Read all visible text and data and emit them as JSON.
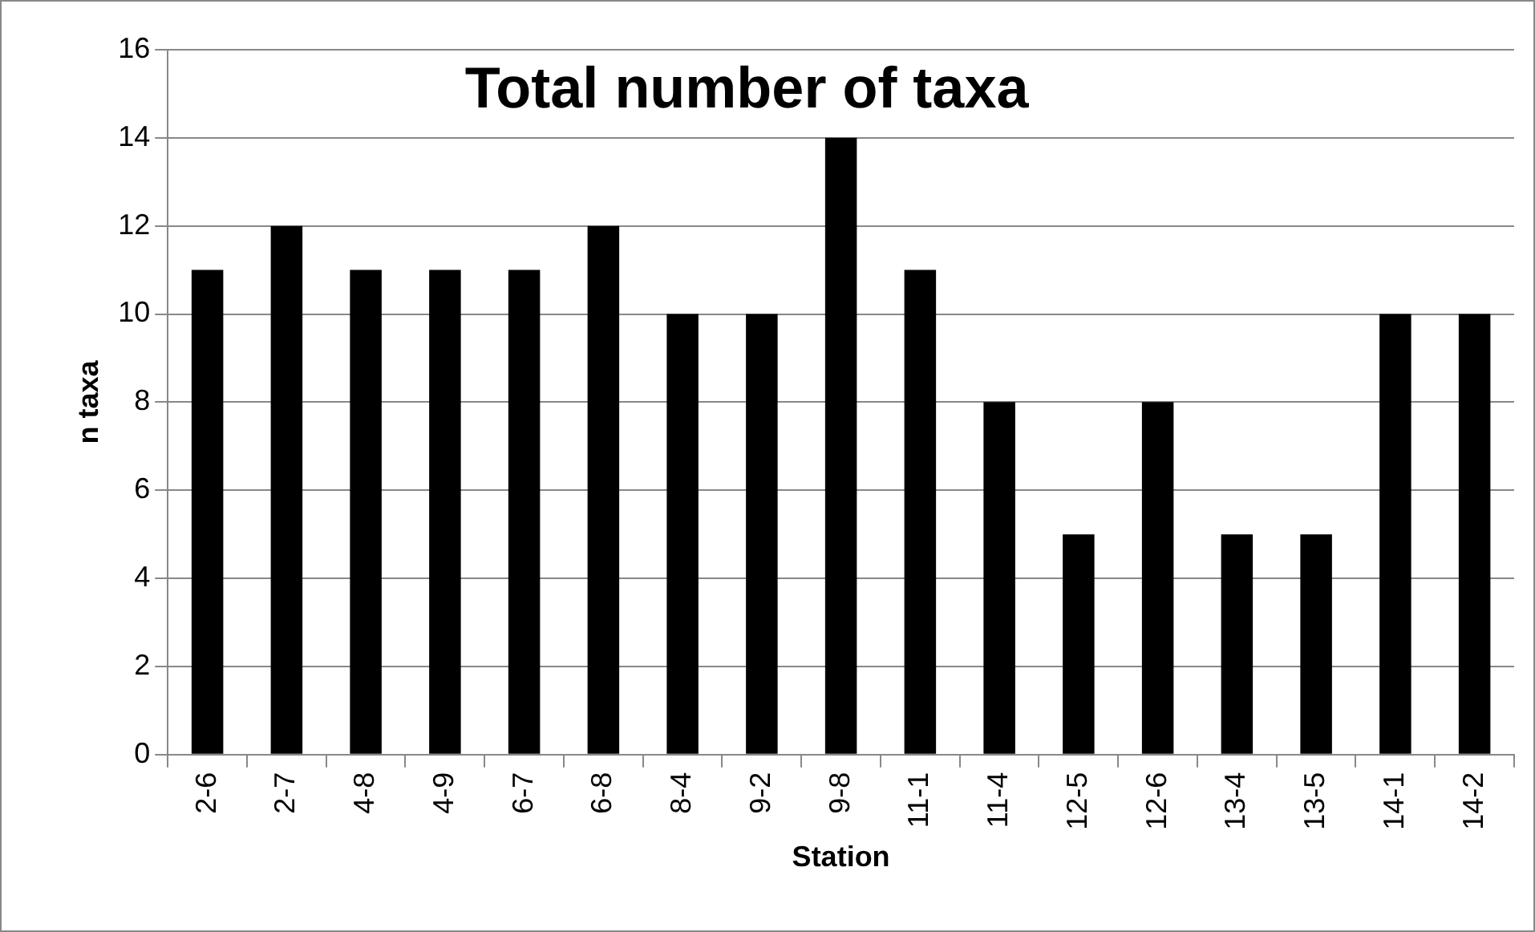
{
  "chart_data": {
    "type": "bar",
    "title": "Total number of taxa",
    "xlabel": "Station",
    "ylabel": "n taxa",
    "categories": [
      "2-6",
      "2-7",
      "4-8",
      "4-9",
      "6-7",
      "6-8",
      "8-4",
      "9-2",
      "9-8",
      "11-1",
      "11-4",
      "12-5",
      "12-6",
      "13-4",
      "13-5",
      "14-1",
      "14-2"
    ],
    "values": [
      11,
      12,
      11,
      11,
      11,
      12,
      10,
      10,
      14,
      11,
      8,
      5,
      8,
      5,
      5,
      10,
      10
    ],
    "color": "#000000",
    "ylim": [
      0,
      16
    ],
    "yticks": [
      0,
      2,
      4,
      6,
      8,
      10,
      12,
      14,
      16
    ],
    "grid": "y",
    "legend": false
  }
}
